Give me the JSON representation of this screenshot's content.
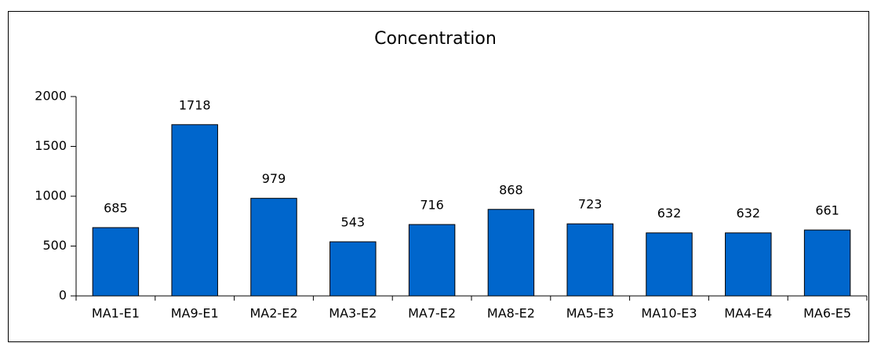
{
  "chart_data": {
    "type": "bar",
    "title": "Concentration",
    "categories": [
      "MA1-E1",
      "MA9-E1",
      "MA2-E2",
      "MA3-E2",
      "MA7-E2",
      "MA8-E2",
      "MA5-E3",
      "MA10-E3",
      "MA4-E4",
      "MA6-E5"
    ],
    "values": [
      685,
      1718,
      979,
      543,
      716,
      868,
      723,
      632,
      632,
      661
    ],
    "color": "#0066cc",
    "ylim": [
      0,
      2000
    ],
    "yticks": [
      0,
      500,
      1000,
      1500,
      2000
    ],
    "grid": false
  }
}
